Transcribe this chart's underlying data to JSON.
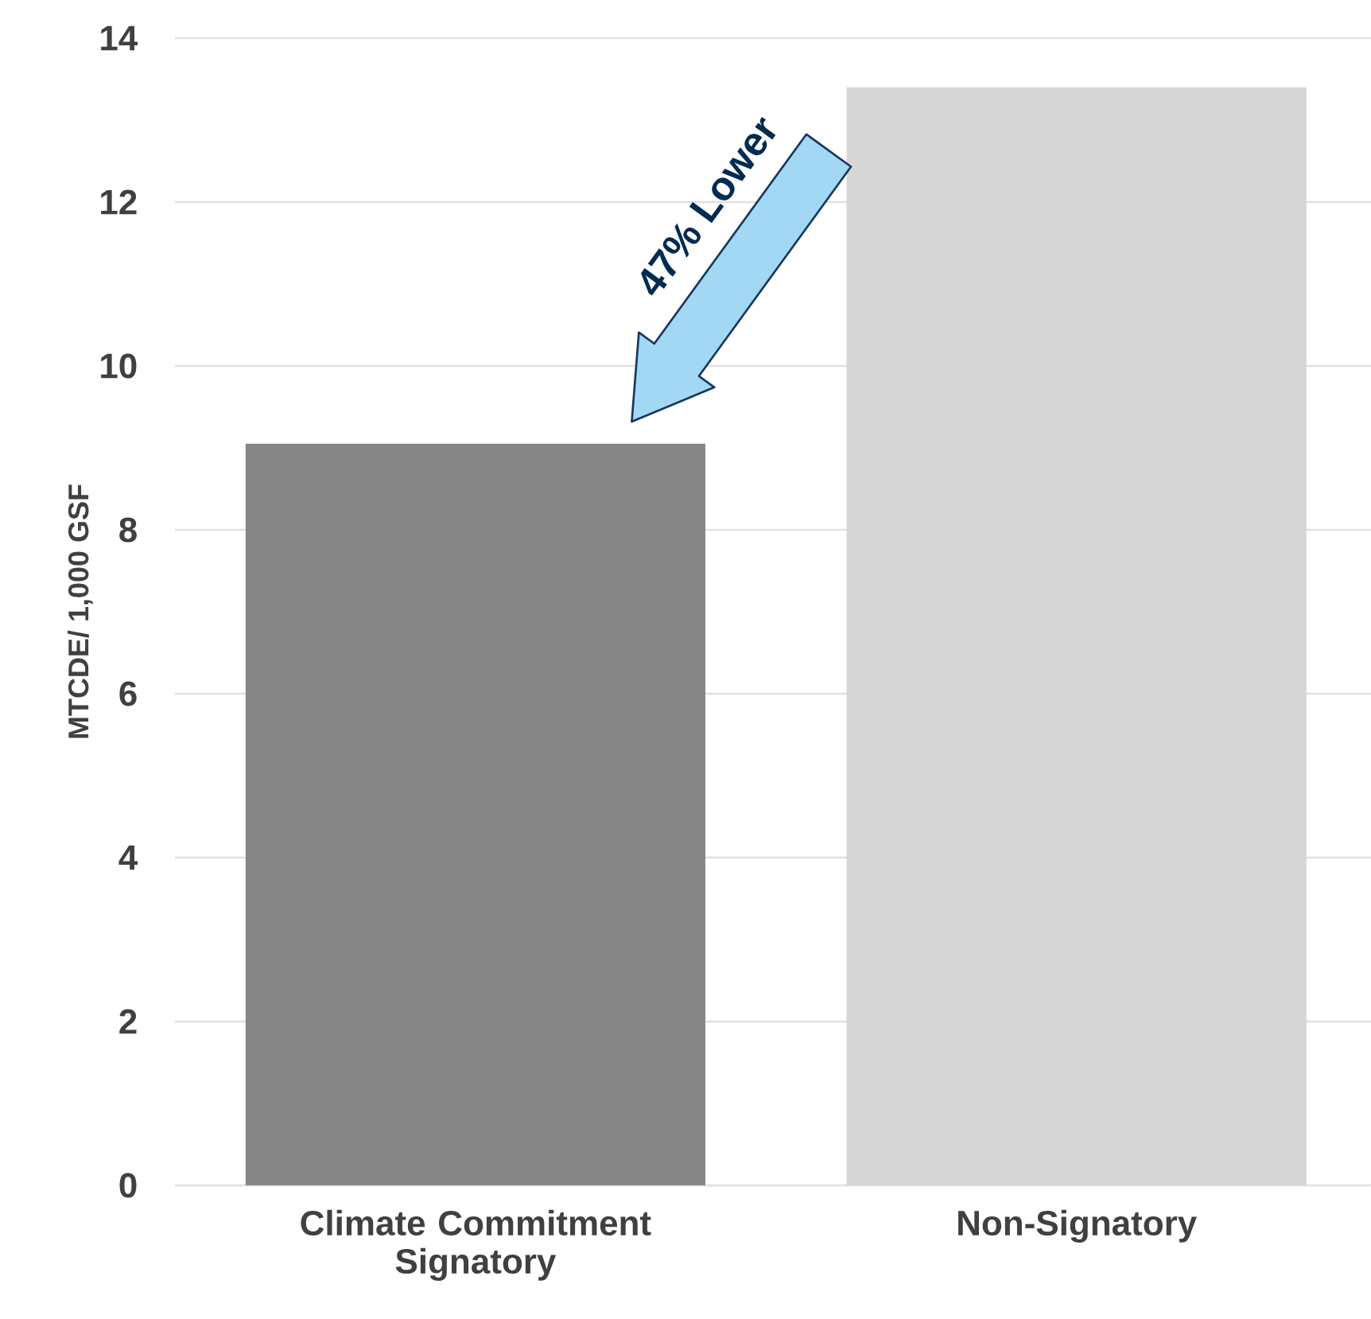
{
  "chart_data": {
    "type": "bar",
    "ylabel": "MTCDE/ 1,000 GSF",
    "categories": [
      "Climate Commitment Signatory",
      "Non-Signatory"
    ],
    "values": [
      9.05,
      13.4
    ],
    "colors": [
      "#868686",
      "#d6d6d6"
    ],
    "ylim": [
      0,
      14
    ],
    "yticks": [
      0,
      2,
      4,
      6,
      8,
      10,
      12,
      14
    ],
    "grid": "y",
    "annotations": [
      "47% Lower"
    ]
  }
}
